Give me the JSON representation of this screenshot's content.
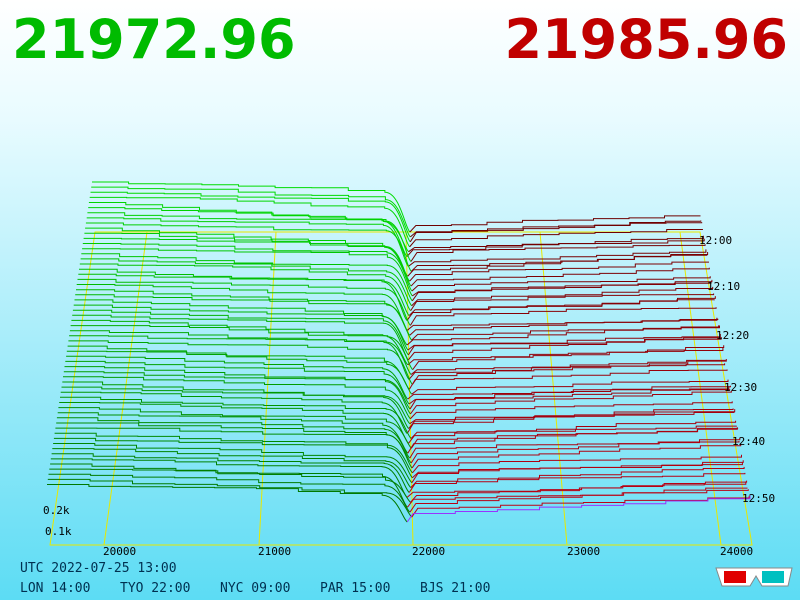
{
  "header": {
    "bid": "21972.96",
    "ask": "21985.96"
  },
  "price_axis": {
    "labels": [
      "20000",
      "21000",
      "22000",
      "23000",
      "24000"
    ]
  },
  "volume_axis": {
    "labels": [
      "0.2k",
      "0.1k"
    ]
  },
  "time_axis": {
    "labels": [
      "12:00",
      "12:10",
      "12:20",
      "12:30",
      "12:40",
      "12:50"
    ]
  },
  "footer": {
    "utc": "UTC 2022-07-25 13:00",
    "clocks": [
      "LON 14:00",
      "TYO 22:00",
      "NYC 09:00",
      "PAR 15:00",
      "BJS 21:00"
    ]
  }
}
